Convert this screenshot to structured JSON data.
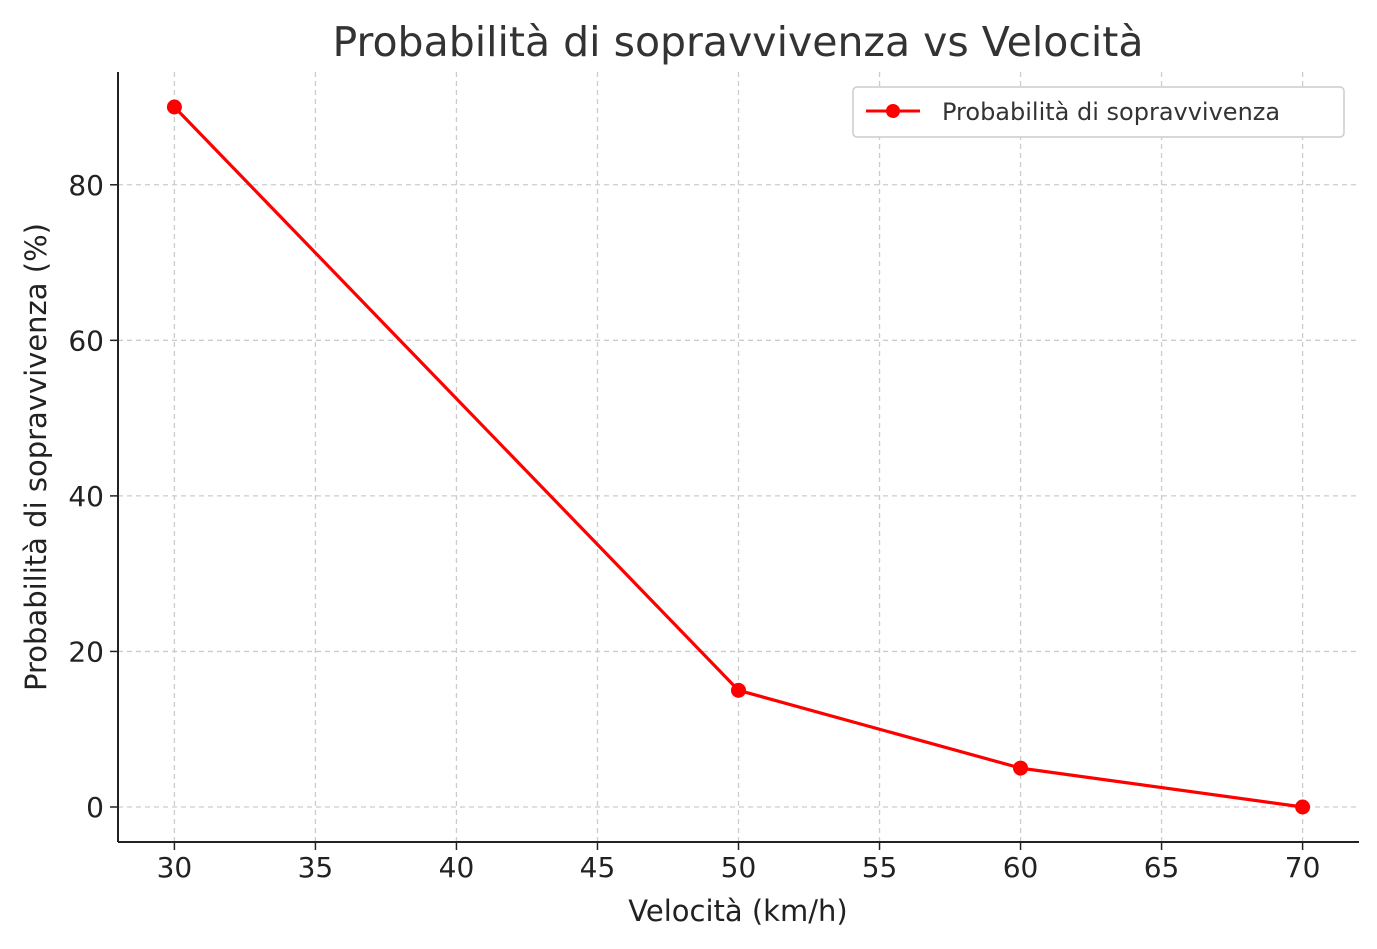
{
  "chart_data": {
    "type": "line",
    "title": "Probabilità di sopravvivenza vs Velocità",
    "xlabel": "Velocità (km/h)",
    "ylabel": "Probabilità di sopravvivenza (%)",
    "x": [
      30,
      50,
      60,
      70
    ],
    "series": [
      {
        "name": "Probabilità di sopravvivenza",
        "values": [
          90,
          15,
          5,
          0
        ],
        "color": "#ff0000",
        "marker": "circle"
      }
    ],
    "xlim": [
      28,
      72
    ],
    "ylim": [
      -4.5,
      94.5
    ],
    "xticks": [
      30,
      35,
      40,
      45,
      50,
      55,
      60,
      65,
      70
    ],
    "yticks": [
      0,
      20,
      40,
      60,
      80
    ],
    "grid": true,
    "grid_style": "dashed",
    "legend_position": "top-right"
  }
}
